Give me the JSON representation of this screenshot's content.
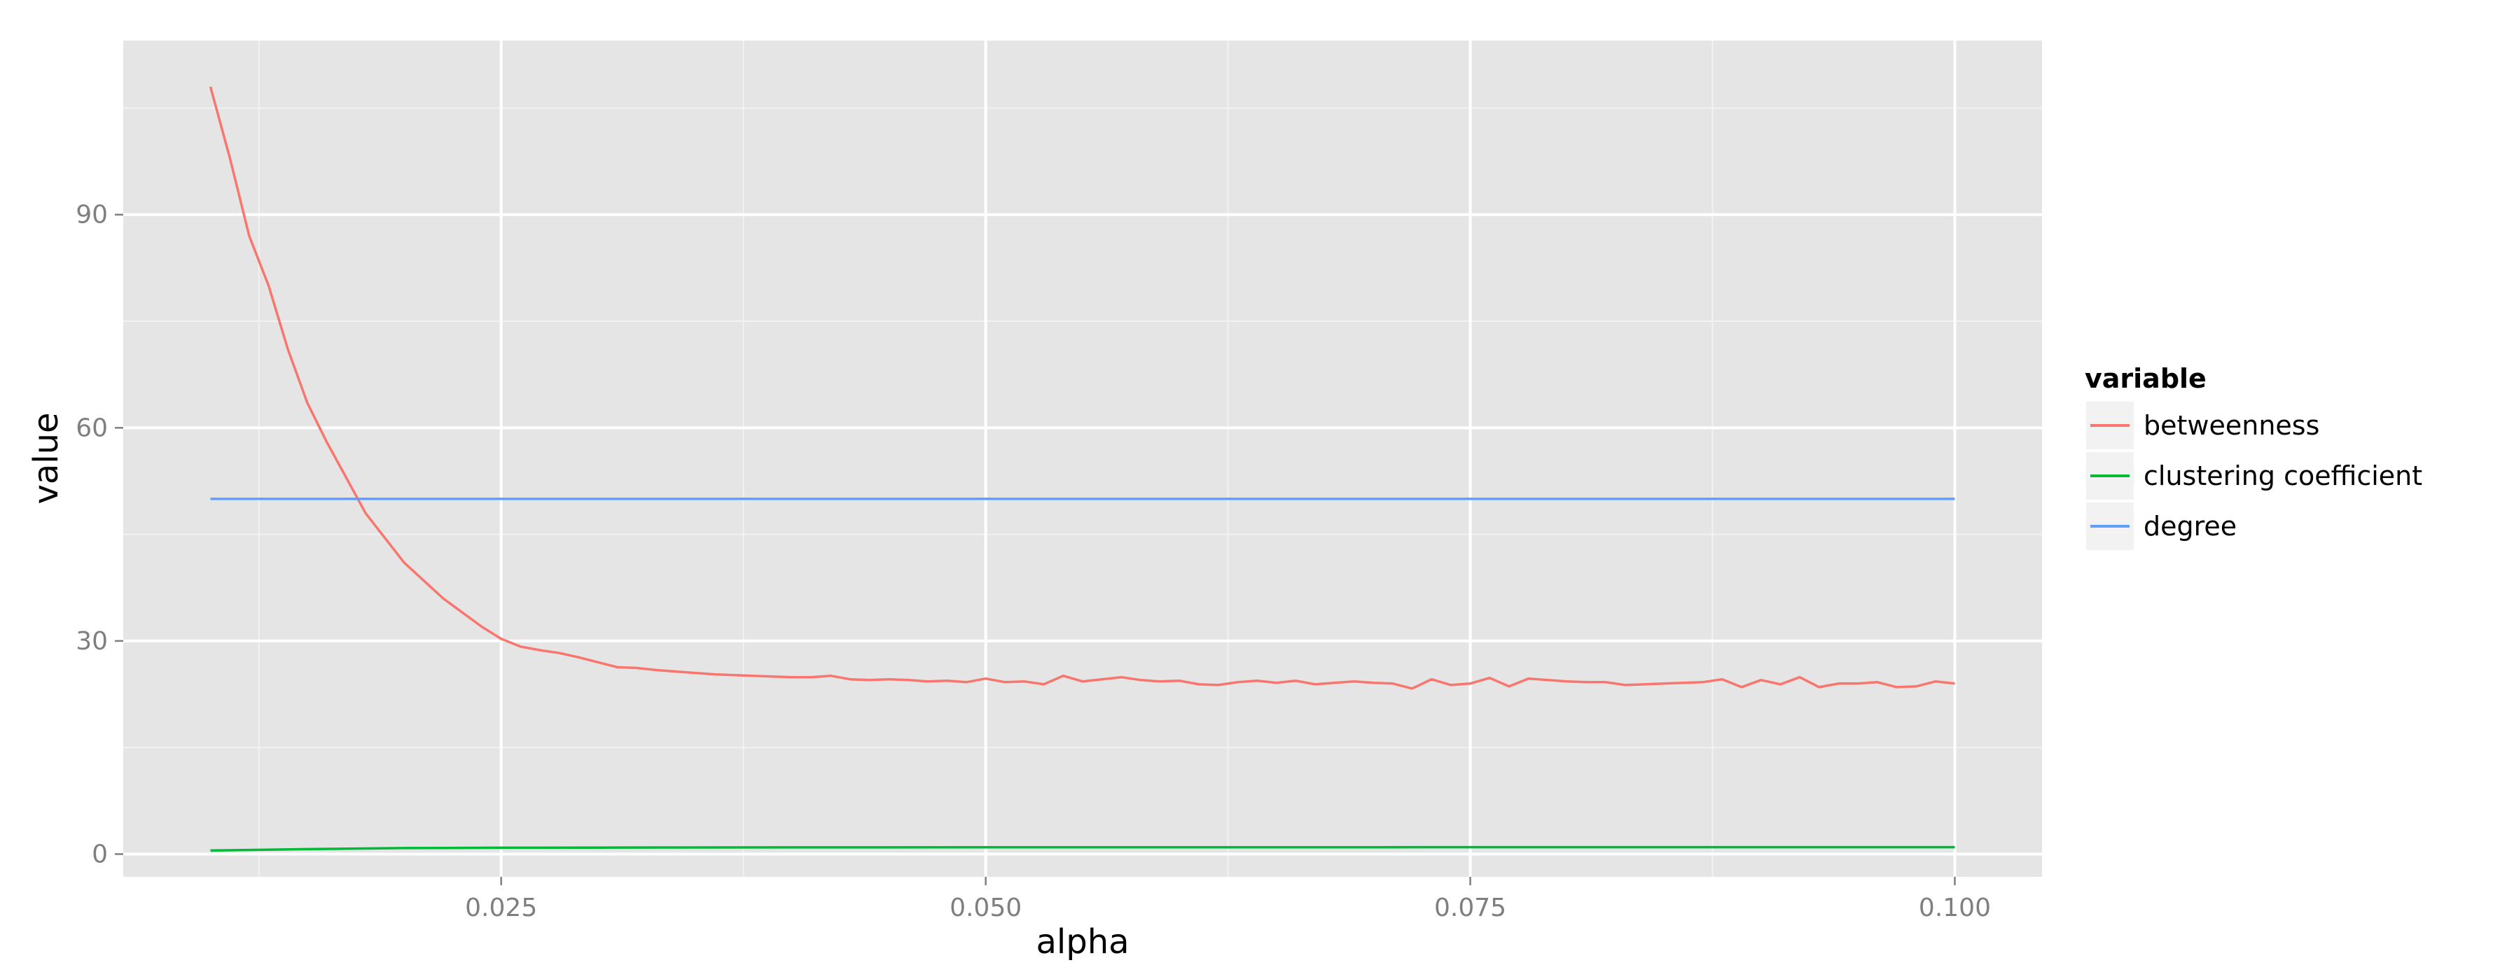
{
  "chart_data": {
    "type": "line",
    "xlabel": "alpha",
    "ylabel": "value",
    "xlim": [
      0.0055,
      0.1045
    ],
    "ylim": [
      -3.2,
      114.5
    ],
    "x_ticks": [
      0.025,
      0.05,
      0.075,
      0.1
    ],
    "x_tick_labels": [
      "0.025",
      "0.050",
      "0.075",
      "0.100"
    ],
    "y_ticks": [
      0,
      30,
      60,
      90
    ],
    "y_tick_labels": [
      "0",
      "30",
      "60",
      "90"
    ],
    "grid": true,
    "legend": {
      "title": "variable",
      "position": "right"
    },
    "series": [
      {
        "name": "betweenness",
        "color": "#F8766D",
        "x": [
          0.01,
          0.011,
          0.012,
          0.013,
          0.014,
          0.015,
          0.016,
          0.017,
          0.018,
          0.019,
          0.02,
          0.021,
          0.022,
          0.023,
          0.024,
          0.025,
          0.026,
          0.027,
          0.028,
          0.029,
          0.03,
          0.031,
          0.032,
          0.033,
          0.034,
          0.035,
          0.036,
          0.037,
          0.038,
          0.039,
          0.04,
          0.041,
          0.042,
          0.043,
          0.044,
          0.045,
          0.046,
          0.047,
          0.048,
          0.049,
          0.05,
          0.051,
          0.052,
          0.053,
          0.054,
          0.055,
          0.056,
          0.057,
          0.058,
          0.059,
          0.06,
          0.061,
          0.062,
          0.063,
          0.064,
          0.065,
          0.066,
          0.067,
          0.068,
          0.069,
          0.07,
          0.071,
          0.072,
          0.073,
          0.074,
          0.075,
          0.076,
          0.077,
          0.078,
          0.079,
          0.08,
          0.081,
          0.082,
          0.083,
          0.084,
          0.085,
          0.086,
          0.087,
          0.088,
          0.089,
          0.09,
          0.091,
          0.092,
          0.093,
          0.094,
          0.095,
          0.096,
          0.097,
          0.098,
          0.099,
          0.1
        ],
        "values": [
          108.0,
          98.0,
          87.0,
          80.0,
          71.0,
          63.5,
          58.0,
          53.0,
          48.0,
          44.5,
          41.0,
          38.5,
          36.0,
          34.0,
          32.0,
          30.3,
          29.2,
          28.7,
          28.3,
          27.7,
          27.0,
          26.3,
          26.2,
          25.9,
          25.7,
          25.5,
          25.3,
          25.2,
          25.1,
          25.0,
          24.9,
          24.9,
          25.1,
          24.6,
          24.5,
          24.6,
          24.5,
          24.3,
          24.4,
          24.2,
          24.7,
          24.2,
          24.3,
          23.9,
          25.1,
          24.3,
          24.6,
          24.9,
          24.5,
          24.3,
          24.4,
          23.9,
          23.8,
          24.2,
          24.4,
          24.1,
          24.4,
          23.9,
          24.1,
          24.3,
          24.1,
          24.0,
          23.3,
          24.6,
          23.8,
          24.0,
          24.8,
          23.6,
          24.7,
          24.5,
          24.3,
          24.2,
          24.2,
          23.8,
          23.9,
          24.0,
          24.1,
          24.2,
          24.6,
          23.5,
          24.5,
          23.9,
          24.9,
          23.5,
          24.0,
          24.0,
          24.2,
          23.5,
          23.6,
          24.3,
          24.0
        ]
      },
      {
        "name": "clustering coefficient",
        "color": "#00BA38",
        "x": [
          0.01,
          0.015,
          0.02,
          0.025,
          0.03,
          0.04,
          0.05,
          0.06,
          0.07,
          0.08,
          0.09,
          0.1
        ],
        "values": [
          0.5,
          0.7,
          0.85,
          0.9,
          0.92,
          0.95,
          0.96,
          0.97,
          0.97,
          0.98,
          0.98,
          0.98
        ]
      },
      {
        "name": "degree",
        "color": "#619CFF",
        "x": [
          0.01,
          0.1
        ],
        "values": [
          50,
          50
        ]
      }
    ]
  }
}
